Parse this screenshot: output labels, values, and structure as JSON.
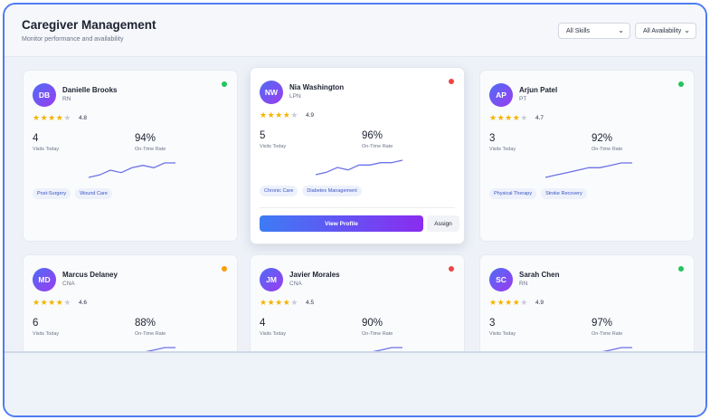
{
  "header": {
    "title": "Caregiver Management",
    "subtitle": "Monitor performance and availability",
    "skill_filter": "All Skills",
    "availability_filter": "All Availability"
  },
  "colors": {
    "accent": "#4d7cf2",
    "available": "#22c55e",
    "busy": "#ef4444",
    "away": "#f59e0b",
    "star": "#f5b400"
  },
  "caregivers": [
    {
      "initials": "DB",
      "name": "Danielle Brooks",
      "role": "RN",
      "status": "available",
      "stars": 4,
      "rating": "4.8",
      "visits": "4",
      "visits_label": "Visits Today",
      "ontime": "94%",
      "ontime_label": "On-Time Rate",
      "trend": [
        2,
        3,
        5,
        4,
        6,
        7,
        6,
        8,
        8
      ],
      "tags": [
        "Post-Surgery",
        "Wound Care"
      ]
    },
    {
      "initials": "NW",
      "name": "Nia Washington",
      "role": "LPN",
      "status": "busy",
      "stars": 4,
      "rating": "4.9",
      "visits": "5",
      "visits_label": "Visits Today",
      "ontime": "96%",
      "ontime_label": "On-Time Rate",
      "trend": [
        2,
        3,
        5,
        4,
        6,
        6,
        7,
        7,
        8
      ],
      "tags": [
        "Chronic Care",
        "Diabetes Management"
      ],
      "actions": {
        "primary": "View Profile",
        "secondary": "Assign"
      }
    },
    {
      "initials": "AP",
      "name": "Arjun Patel",
      "role": "PT",
      "status": "available",
      "stars": 4,
      "rating": "4.7",
      "visits": "3",
      "visits_label": "Visits Today",
      "ontime": "92%",
      "ontime_label": "On-Time Rate",
      "trend": [
        2,
        3,
        4,
        5,
        6,
        6,
        7,
        8,
        8
      ],
      "tags": [
        "Physical Therapy",
        "Stroke Recovery"
      ]
    },
    {
      "initials": "MD",
      "name": "Marcus Delaney",
      "role": "CNA",
      "status": "away",
      "stars": 4,
      "rating": "4.6",
      "visits": "6",
      "visits_label": "Visits Today",
      "ontime": "88%",
      "ontime_label": "On-Time Rate",
      "trend": [
        2,
        3,
        4,
        5,
        6,
        6,
        7,
        8,
        8
      ],
      "tags": []
    },
    {
      "initials": "JM",
      "name": "Javier Morales",
      "role": "CNA",
      "status": "busy",
      "stars": 4,
      "rating": "4.5",
      "visits": "4",
      "visits_label": "Visits Today",
      "ontime": "90%",
      "ontime_label": "On-Time Rate",
      "trend": [
        2,
        3,
        4,
        5,
        6,
        6,
        7,
        8,
        8
      ],
      "tags": []
    },
    {
      "initials": "SC",
      "name": "Sarah Chen",
      "role": "RN",
      "status": "available",
      "stars": 4,
      "rating": "4.9",
      "visits": "3",
      "visits_label": "Visits Today",
      "ontime": "97%",
      "ontime_label": "On-Time Rate",
      "trend": [
        2,
        3,
        4,
        5,
        6,
        6,
        7,
        8,
        8
      ],
      "tags": []
    }
  ]
}
